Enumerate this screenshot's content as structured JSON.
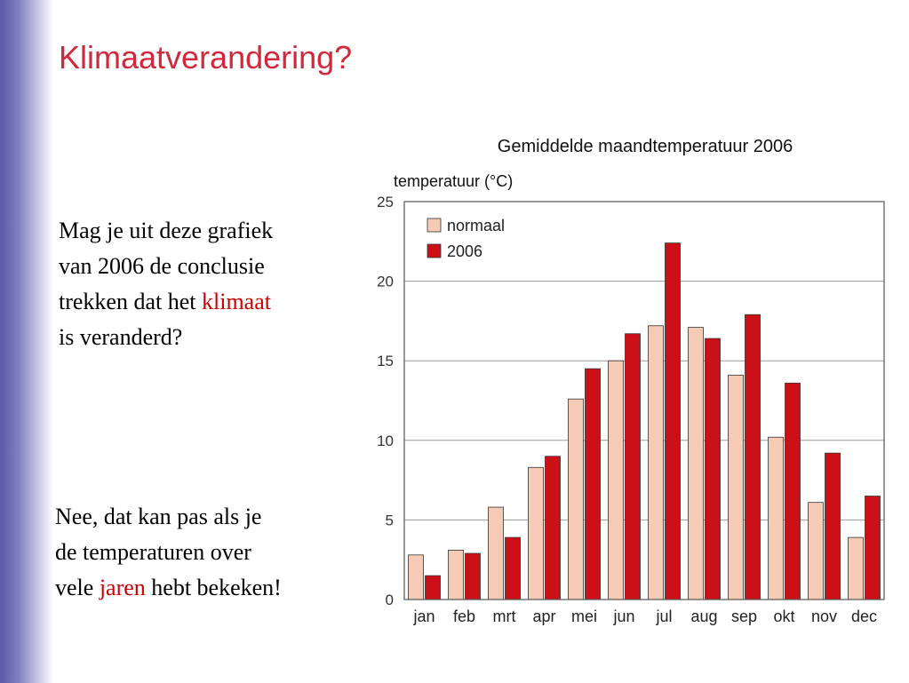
{
  "slide": {
    "title": "Klimaatverandering?",
    "question": {
      "before": "Mag je uit deze grafiek",
      "line2": "van 2006 de conclusie",
      "line3": "trekken dat het ",
      "highlight": "klimaat",
      "line4": "is veranderd?"
    },
    "answer": {
      "line1": "Nee, dat kan pas als je",
      "line2": "de temperaturen over",
      "line3_before": "vele ",
      "highlight": "jaren",
      "line3_after": " hebt bekeken!"
    },
    "highlight_color": "#cc0000",
    "title_color": "#d2283c"
  },
  "chart_data": {
    "type": "bar",
    "title": "Gemiddelde maandtemperatuur 2006",
    "ylabel": "temperatuur (°C)",
    "xlabel": "",
    "categories": [
      "jan",
      "feb",
      "mrt",
      "apr",
      "mei",
      "jun",
      "jul",
      "aug",
      "sep",
      "okt",
      "nov",
      "dec"
    ],
    "series": [
      {
        "name": "normaal",
        "color": "#f5cbb5",
        "values": [
          2.8,
          3.1,
          5.8,
          8.3,
          12.6,
          15.0,
          17.2,
          17.1,
          14.1,
          10.2,
          6.1,
          3.9
        ]
      },
      {
        "name": "2006",
        "color": "#cc1018",
        "values": [
          1.5,
          2.9,
          3.9,
          9.0,
          14.5,
          16.7,
          22.4,
          16.4,
          17.9,
          13.6,
          9.2,
          6.5
        ]
      }
    ],
    "ylim": [
      0,
      25
    ],
    "yticks": [
      "0",
      "5",
      "10",
      "15",
      "20",
      "25"
    ],
    "grid": true,
    "legend": "top-left"
  }
}
